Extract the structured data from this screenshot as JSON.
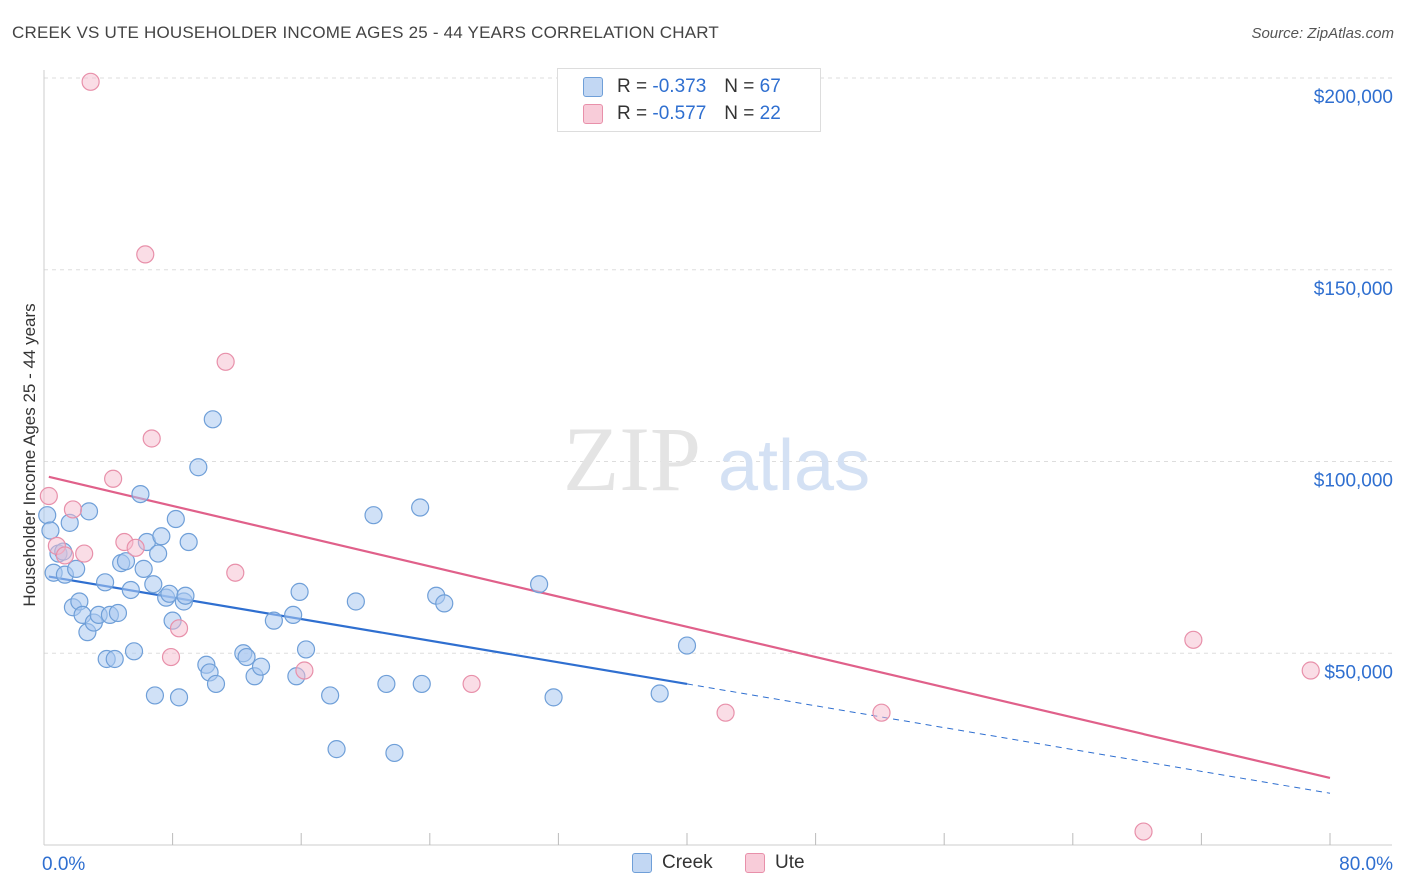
{
  "title": "CREEK VS UTE HOUSEHOLDER INCOME AGES 25 - 44 YEARS CORRELATION CHART",
  "source": "Source: ZipAtlas.com",
  "watermark": {
    "zip": "ZIP",
    "atlas": "atlas"
  },
  "legend": {
    "rows": [
      {
        "r_label": "R = ",
        "r_value": "-0.373",
        "n_label": "N = ",
        "n_value": "67"
      },
      {
        "r_label": "R = ",
        "r_value": "-0.577",
        "n_label": "N = ",
        "n_value": "22"
      }
    ]
  },
  "colors": {
    "creek_fill": "#a9c8f0",
    "creek_stroke": "#6f9fd8",
    "creek_line": "#2f6fd0",
    "ute_fill": "#f6bccd",
    "ute_stroke": "#e890aa",
    "ute_line": "#e0608a",
    "axis_label": "#2f6fd0",
    "grid": "#dddddd"
  },
  "chart_data": {
    "type": "scatter",
    "title": "CREEK VS UTE HOUSEHOLDER INCOME AGES 25 - 44 YEARS CORRELATION CHART",
    "xlabel": "",
    "ylabel": "Householder Income Ages 25 - 44 years",
    "xlim": [
      0,
      80
    ],
    "ylim": [
      0,
      205000
    ],
    "x_tick_labels": [
      "0.0%",
      "80.0%"
    ],
    "y_ticks": [
      50000,
      100000,
      150000,
      200000
    ],
    "y_tick_labels": [
      "$50,000",
      "$100,000",
      "$150,000",
      "$200,000"
    ],
    "series": [
      {
        "name": "Creek",
        "points": [
          [
            0.2,
            86000
          ],
          [
            0.4,
            82000
          ],
          [
            0.6,
            71000
          ],
          [
            0.9,
            76000
          ],
          [
            1.2,
            76500
          ],
          [
            1.3,
            70500
          ],
          [
            1.6,
            84000
          ],
          [
            1.8,
            62000
          ],
          [
            2.0,
            72000
          ],
          [
            2.2,
            63500
          ],
          [
            2.4,
            60000
          ],
          [
            2.7,
            55500
          ],
          [
            2.8,
            87000
          ],
          [
            3.1,
            58000
          ],
          [
            3.4,
            60000
          ],
          [
            3.8,
            68500
          ],
          [
            3.9,
            48500
          ],
          [
            4.1,
            60000
          ],
          [
            4.4,
            48500
          ],
          [
            4.6,
            60500
          ],
          [
            4.8,
            73500
          ],
          [
            5.1,
            74000
          ],
          [
            5.4,
            66500
          ],
          [
            5.6,
            50500
          ],
          [
            6.0,
            91500
          ],
          [
            6.2,
            72000
          ],
          [
            6.4,
            79000
          ],
          [
            6.8,
            68000
          ],
          [
            6.9,
            39000
          ],
          [
            7.1,
            76000
          ],
          [
            7.3,
            80500
          ],
          [
            7.6,
            64500
          ],
          [
            7.8,
            65500
          ],
          [
            8.0,
            58500
          ],
          [
            8.2,
            85000
          ],
          [
            8.4,
            38500
          ],
          [
            8.7,
            63500
          ],
          [
            8.8,
            65000
          ],
          [
            9.0,
            79000
          ],
          [
            9.6,
            98500
          ],
          [
            10.1,
            47000
          ],
          [
            10.3,
            45000
          ],
          [
            10.5,
            111000
          ],
          [
            10.7,
            42000
          ],
          [
            12.4,
            50000
          ],
          [
            12.6,
            49000
          ],
          [
            13.1,
            44000
          ],
          [
            13.5,
            46500
          ],
          [
            14.3,
            58500
          ],
          [
            15.5,
            60000
          ],
          [
            15.7,
            44000
          ],
          [
            15.9,
            66000
          ],
          [
            16.3,
            51000
          ],
          [
            17.8,
            39000
          ],
          [
            18.2,
            25000
          ],
          [
            19.4,
            63500
          ],
          [
            20.5,
            86000
          ],
          [
            21.3,
            42000
          ],
          [
            21.8,
            24000
          ],
          [
            23.4,
            88000
          ],
          [
            23.5,
            42000
          ],
          [
            24.4,
            65000
          ],
          [
            24.9,
            63000
          ],
          [
            30.8,
            68000
          ],
          [
            31.7,
            38500
          ],
          [
            38.3,
            39500
          ],
          [
            40.0,
            52000
          ]
        ],
        "trend": {
          "x": [
            0.3,
            40.0
          ],
          "y": [
            70000,
            42000
          ],
          "dashed_to": [
            80.0,
            13500
          ]
        }
      },
      {
        "name": "Ute",
        "points": [
          [
            0.3,
            91000
          ],
          [
            0.8,
            78000
          ],
          [
            1.3,
            75500
          ],
          [
            1.8,
            87500
          ],
          [
            2.5,
            76000
          ],
          [
            2.9,
            199000
          ],
          [
            4.3,
            95500
          ],
          [
            5.0,
            79000
          ],
          [
            5.7,
            77500
          ],
          [
            6.3,
            154000
          ],
          [
            6.7,
            106000
          ],
          [
            7.9,
            49000
          ],
          [
            8.4,
            56500
          ],
          [
            11.3,
            126000
          ],
          [
            11.9,
            71000
          ],
          [
            16.2,
            45500
          ],
          [
            26.6,
            42000
          ],
          [
            42.4,
            34500
          ],
          [
            52.1,
            34500
          ],
          [
            68.4,
            3500
          ],
          [
            71.5,
            53500
          ],
          [
            78.8,
            45500
          ]
        ],
        "trend": {
          "x": [
            0.3,
            80.0
          ],
          "y": [
            96000,
            17500
          ]
        }
      }
    ],
    "legend": [
      {
        "name": "Creek",
        "r": -0.373,
        "n": 67
      },
      {
        "name": "Ute",
        "r": -0.577,
        "n": 22
      }
    ]
  }
}
